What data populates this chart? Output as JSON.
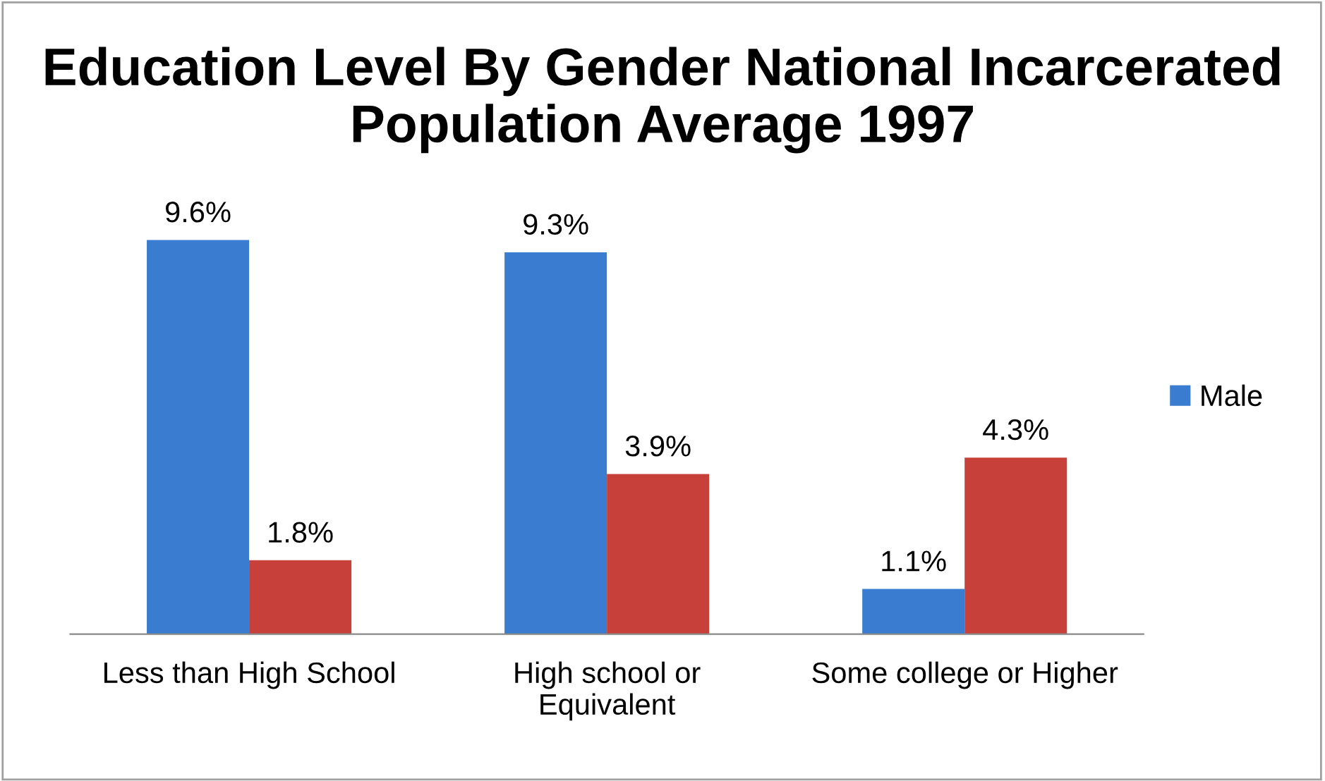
{
  "chart_data": {
    "type": "bar",
    "title": "Education Level By Gender National Incarcerated Population Average 1997",
    "categories": [
      "Less than High School",
      "High school or\nEquivalent",
      "Some college or Higher"
    ],
    "series": [
      {
        "name": "Male",
        "color": "#3a7dd0",
        "values": [
          9.6,
          9.3,
          1.1
        ],
        "value_labels": [
          "9.6%",
          "9.3%",
          "1.1%"
        ]
      },
      {
        "color": "#c8403a",
        "values": [
          1.8,
          3.9,
          4.3
        ],
        "value_labels": [
          "1.8%",
          "3.9%",
          "4.3%"
        ]
      }
    ],
    "legend": "right",
    "grid": false
  }
}
